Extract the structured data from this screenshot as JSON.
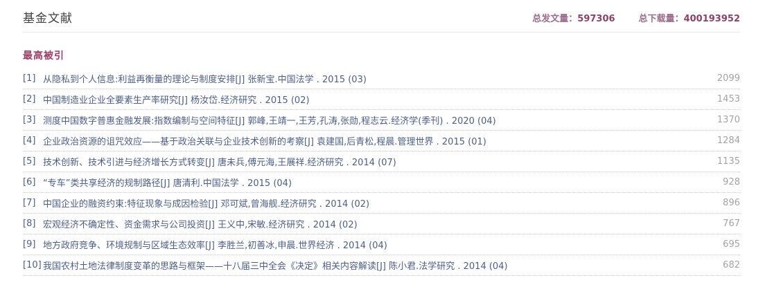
{
  "header": {
    "title": "基金文献",
    "stats": [
      {
        "label": "总发文量：",
        "value": "597306"
      },
      {
        "label": "总下载量：",
        "value": "400193952"
      }
    ]
  },
  "section": {
    "title": "最高被引"
  },
  "list": {
    "items": [
      {
        "index": "[1]",
        "text": "从隐私到个人信息:利益再衡量的理论与制度安排[J] 张新宝.中国法学 . 2015 (03)",
        "citations": "2099"
      },
      {
        "index": "[2]",
        "text": "中国制造业企业全要素生产率研究[J] 杨汝岱.经济研究 . 2015 (02)",
        "citations": "1453"
      },
      {
        "index": "[3]",
        "text": "测度中国数字普惠金融发展:指数编制与空间特征[J] 郭峰,王靖一,王芳,孔涛,张勋,程志云.经济学(季刊) . 2020 (04)",
        "citations": "1370"
      },
      {
        "index": "[4]",
        "text": "企业政治资源的诅咒效应——基于政治关联与企业技术创新的考察[J] 袁建国,后青松,程晨.管理世界 . 2015 (01)",
        "citations": "1284"
      },
      {
        "index": "[5]",
        "text": "技术创新、技术引进与经济增长方式转变[J] 唐未兵,傅元海,王展祥.经济研究 . 2014 (07)",
        "citations": "1135"
      },
      {
        "index": "[6]",
        "text": "“专车”类共享经济的规制路径[J] 唐清利.中国法学 . 2015 (04)",
        "citations": "928"
      },
      {
        "index": "[7]",
        "text": "中国企业的融资约束:特征现象与成因检验[J] 邓可斌,曾海舰.经济研究 . 2014 (02)",
        "citations": "896"
      },
      {
        "index": "[8]",
        "text": "宏观经济不确定性、资金需求与公司投资[J] 王义中,宋敏.经济研究 . 2014 (02)",
        "citations": "767"
      },
      {
        "index": "[9]",
        "text": "地方政府竞争、环境规制与区域生态效率[J] 李胜兰,初善冰,申晨.世界经济 . 2014 (04)",
        "citations": "695"
      },
      {
        "index": "[10]",
        "text": "我国农村土地法律制度变革的思路与框架——十八届三中全会《决定》相关内容解读[J] 陈小君.法学研究 . 2014 (04)",
        "citations": "682"
      }
    ]
  },
  "colors": {
    "accent": "#9b3c64",
    "link_text": "#4c5e86",
    "count_text": "#a3a3a3",
    "stat_label": "#9a6d8d",
    "stat_value": "#8e4167"
  }
}
